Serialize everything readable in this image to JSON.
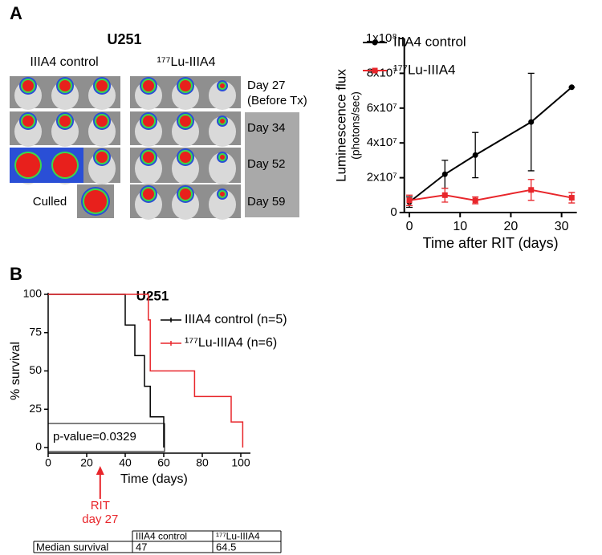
{
  "panel_labels": [
    "A",
    "B"
  ],
  "panel_a": {
    "title": "U251",
    "group_labels": [
      "IIIA4 control",
      "¹⁷⁷Lu-IIIA4"
    ],
    "row_labels": [
      "Day 27",
      "(Before Tx)",
      "Day 34",
      "Day 52",
      "Day 59"
    ],
    "culled": "Culled"
  },
  "chart_data": [
    {
      "type": "line",
      "ylabel": "Luminescence flux",
      "ylabel_sub": "(photons/sec)",
      "xlabel": "Time after RIT (days)",
      "xlim": [
        -1,
        33
      ],
      "xticks": [
        0,
        10,
        20,
        30
      ],
      "ylim": [
        0,
        100000000
      ],
      "yticks": [
        0,
        {
          "value": 20000000,
          "label": "2x10⁷"
        },
        {
          "value": 40000000,
          "label": "4x10⁷"
        },
        {
          "value": 60000000,
          "label": "6x10⁷"
        },
        {
          "value": 80000000,
          "label": "8x10⁷"
        },
        {
          "value": 100000000,
          "label": "1x10⁸"
        }
      ],
      "legend": "top-left",
      "series": [
        {
          "name": "IIIA4 control",
          "color": "#000000",
          "x": [
            0,
            7,
            13,
            24,
            32
          ],
          "values": [
            6000000,
            22000000,
            33000000,
            52000000,
            72000000
          ],
          "errors": [
            3000000,
            8000000,
            13000000,
            28000000,
            0
          ]
        },
        {
          "name": "¹⁷⁷Lu-IIIA4",
          "color": "#e8262b",
          "x": [
            0,
            7,
            13,
            24,
            32
          ],
          "values": [
            7000000,
            10000000,
            7000000,
            13000000,
            8500000
          ],
          "errors": [
            3000000,
            4000000,
            2000000,
            6000000,
            3000000
          ]
        }
      ]
    },
    {
      "type": "step",
      "title": "U251",
      "ylabel": "% survival",
      "xlabel": "Time (days)",
      "annotation": "p-value=0.0329",
      "marker_labels": [
        "RIT",
        "day 27"
      ],
      "marker_x": 27,
      "xlim": [
        0,
        105
      ],
      "xticks": [
        0,
        20,
        40,
        60,
        80,
        100
      ],
      "ylim": [
        0,
        100
      ],
      "yticks": [
        0,
        25,
        50,
        75,
        100
      ],
      "series": [
        {
          "name": "IIIA4 control (n=5)",
          "color": "#000000",
          "x": [
            0,
            40,
            45,
            50,
            53,
            60
          ],
          "values": [
            100,
            80,
            60,
            40,
            20,
            0
          ]
        },
        {
          "name": "¹⁷⁷Lu-IIIA4 (n=6)",
          "color": "#e8262b",
          "x": [
            0,
            52,
            53,
            76,
            95,
            101
          ],
          "values": [
            100,
            83.3,
            50,
            33.3,
            16.7,
            0
          ]
        }
      ]
    }
  ],
  "table": {
    "columns": [
      "IIIA4 control",
      "¹⁷⁷Lu-IIIA4"
    ],
    "rows": [
      {
        "label": "Median survival",
        "values": [
          47,
          64.5
        ]
      }
    ]
  }
}
